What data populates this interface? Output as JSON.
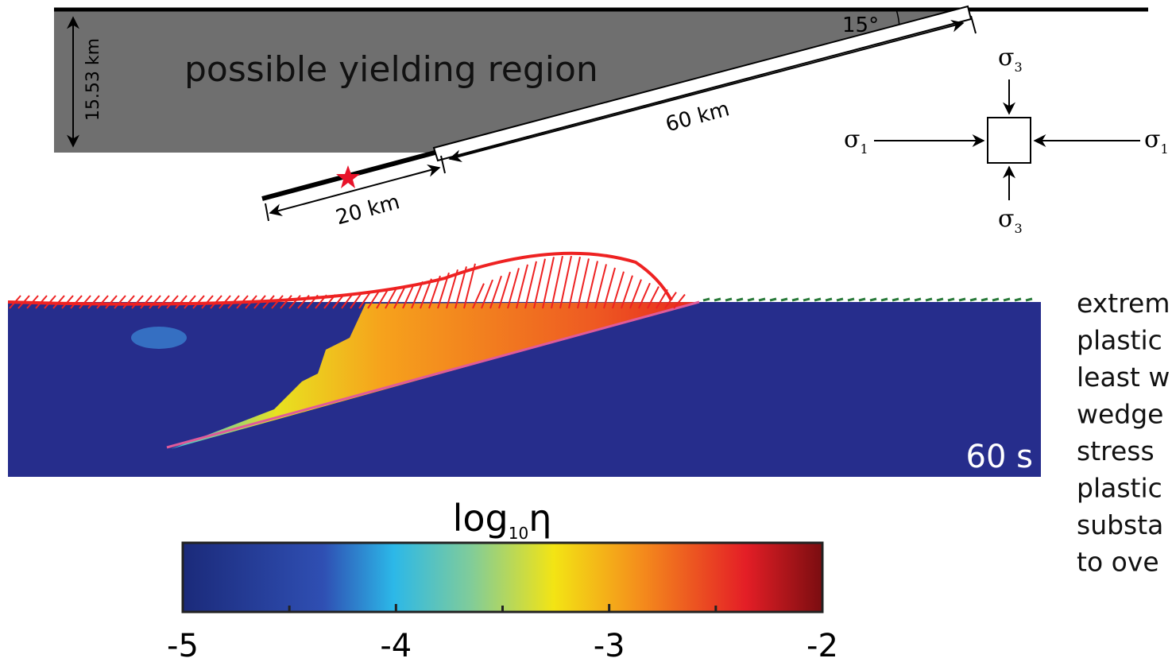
{
  "top_diagram": {
    "angle_label": "15°",
    "depth_label": "15.53 km",
    "region_label": "possible yielding region",
    "upper_length_label": "60 km",
    "lower_length_label": "20 km",
    "stress": {
      "top": {
        "symbol": "σ",
        "subscript": "3"
      },
      "left": {
        "symbol": "σ",
        "subscript": "1"
      },
      "right": {
        "symbol": "σ",
        "subscript": "1"
      },
      "bottom": {
        "symbol": "σ",
        "subscript": "3"
      }
    }
  },
  "snapshot": {
    "time_label": "60 s"
  },
  "colorbar": {
    "label": {
      "base": "log",
      "subscript": "10",
      "symbol": "η"
    },
    "lim": [
      -5,
      -2
    ],
    "ticks": [
      -5,
      -4,
      -3,
      -2
    ],
    "minor_ticks": [
      -4.5,
      -3.5,
      -2.5
    ]
  },
  "side_text": {
    "lines": [
      "extrem",
      "plastic",
      "least w",
      "wedge",
      "stress",
      "plastic",
      "substa",
      "to ove"
    ]
  }
}
